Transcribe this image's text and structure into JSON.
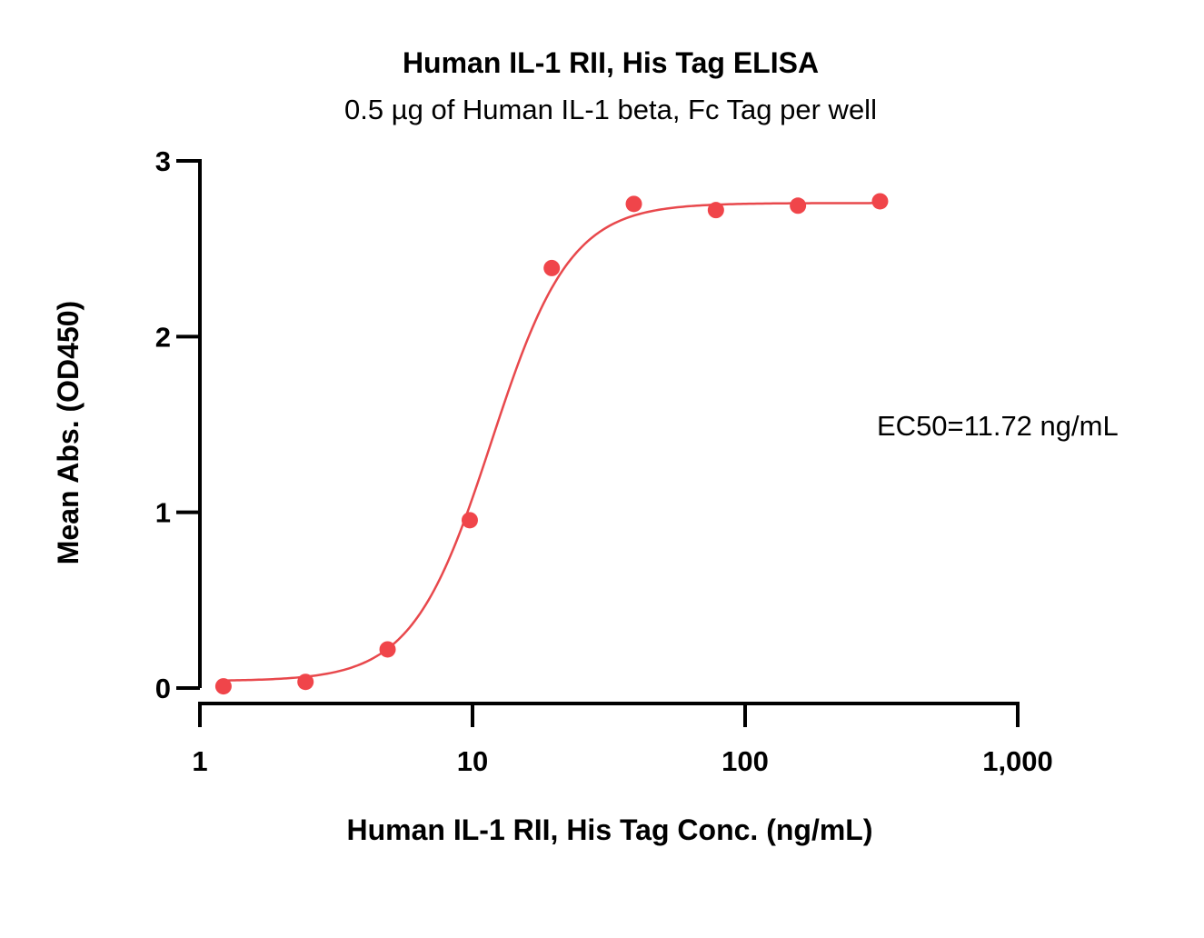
{
  "chart_data": {
    "type": "scatter",
    "title": "Human IL-1 RII, His Tag ELISA",
    "subtitle": "0.5 µg of Human IL-1 beta, Fc Tag per well",
    "xlabel": "Human IL-1 RII, His Tag Conc. (ng/mL)",
    "ylabel": "Mean Abs. (OD450)",
    "x_scale": "log",
    "xlim": [
      1,
      1000
    ],
    "ylim": [
      0,
      3
    ],
    "x_ticks": [
      1,
      10,
      100,
      1000
    ],
    "x_tick_labels": [
      "1",
      "10",
      "100",
      "1,000"
    ],
    "y_ticks": [
      0,
      1,
      2,
      3
    ],
    "y_tick_labels": [
      "0",
      "1",
      "2",
      "3"
    ],
    "series": [
      {
        "color": "#f0454a",
        "x": [
          1.22,
          2.44,
          4.88,
          9.77,
          19.53,
          39.06,
          78.13,
          156.25,
          312.5
        ],
        "y": [
          0.01,
          0.035,
          0.22,
          0.955,
          2.39,
          2.755,
          2.72,
          2.745,
          2.77
        ]
      }
    ],
    "fit": {
      "type": "4PL",
      "bottom": 0.04,
      "top": 2.76,
      "ec50": 11.72,
      "hill": 3.0,
      "color": "#e8484c"
    },
    "annotations": [
      {
        "text": "EC50=11.72 ng/mL"
      }
    ],
    "grid": false,
    "legend": "none"
  }
}
